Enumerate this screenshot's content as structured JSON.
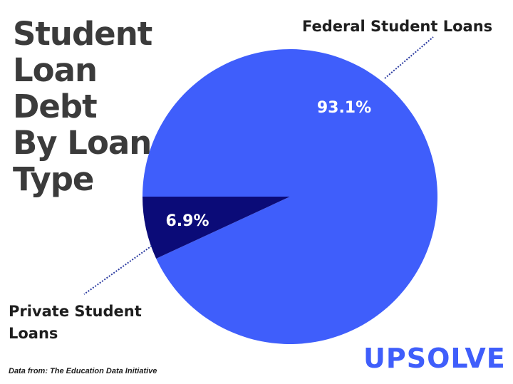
{
  "chart_data": {
    "type": "pie",
    "title_lines": [
      "Student Loan",
      "Debt",
      "By Loan",
      "Type"
    ],
    "slices": [
      {
        "label": "Federal Student Loans",
        "value": 93.1,
        "display": "93.1%",
        "color": "#3f5efb"
      },
      {
        "label": "Private Student Loans",
        "value": 6.9,
        "display": "6.9%",
        "color": "#0b0b78"
      }
    ],
    "private_label_lines": [
      "Private Student",
      "Loans"
    ],
    "source": "Data from: The Education Data Initiative"
  },
  "logo": {
    "text": "UPSOLVE",
    "color": "#3f5efb"
  }
}
